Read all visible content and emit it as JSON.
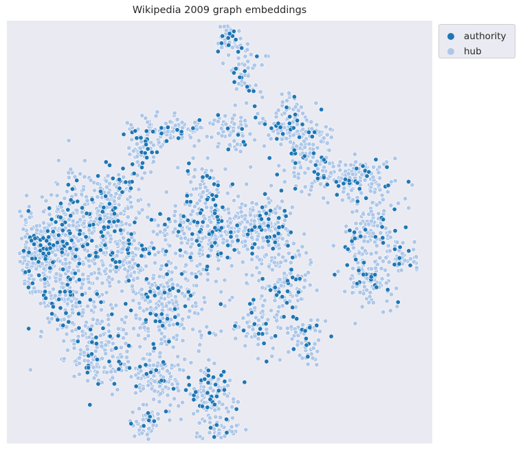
{
  "chart_data": {
    "type": "scatter",
    "title": "Wikipedia 2009 graph embeddings",
    "xlabel": "",
    "ylabel": "",
    "xlim": [
      0,
      100
    ],
    "ylim": [
      0,
      100
    ],
    "grid": false,
    "axes_visible": false,
    "background_color": "#eaeaf2",
    "legend": {
      "placement": "outside-top-right"
    },
    "series": [
      {
        "name": "authority",
        "color": "#1f77b4",
        "points": []
      },
      {
        "name": "hub",
        "color": "#aec7e8",
        "points": []
      }
    ],
    "distribution_note": "approximate; points sampled along the visible clusters"
  }
}
